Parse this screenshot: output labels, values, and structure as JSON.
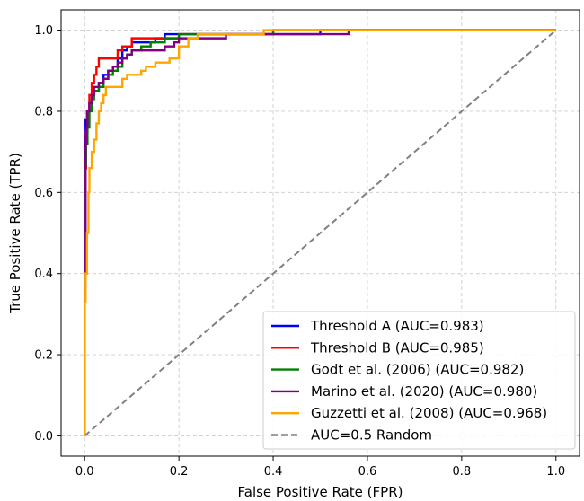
{
  "chart_data": {
    "type": "line",
    "xlabel": "False Positive Rate (FPR)",
    "ylabel": "True Positive Rate (TPR)",
    "xlim": [
      -0.05,
      1.05
    ],
    "ylim": [
      -0.05,
      1.05
    ],
    "xticks": [
      0.0,
      0.2,
      0.4,
      0.6,
      0.8,
      1.0
    ],
    "yticks": [
      0.0,
      0.2,
      0.4,
      0.6,
      0.8,
      1.0
    ],
    "xtick_labels": [
      "0.0",
      "0.2",
      "0.4",
      "0.6",
      "0.8",
      "1.0"
    ],
    "ytick_labels": [
      "0.0",
      "0.2",
      "0.4",
      "0.6",
      "0.8",
      "1.0"
    ],
    "grid": true,
    "legend_position": "lower-right",
    "series": [
      {
        "name": "Threshold A (AUC=0.983)",
        "color": "#0000ff",
        "step": true,
        "x": [
          0.0,
          0.0,
          0.002,
          0.005,
          0.01,
          0.015,
          0.02,
          0.03,
          0.04,
          0.05,
          0.06,
          0.07,
          0.08,
          0.09,
          0.1,
          0.12,
          0.15,
          0.17,
          0.2,
          0.3,
          0.5,
          1.0
        ],
        "y": [
          0.0,
          0.74,
          0.78,
          0.8,
          0.82,
          0.84,
          0.85,
          0.87,
          0.89,
          0.9,
          0.91,
          0.93,
          0.95,
          0.96,
          0.97,
          0.97,
          0.98,
          0.99,
          0.99,
          0.99,
          1.0,
          1.0
        ]
      },
      {
        "name": "Threshold B (AUC=0.985)",
        "color": "#ff0000",
        "step": true,
        "x": [
          0.0,
          0.0,
          0.003,
          0.006,
          0.01,
          0.015,
          0.02,
          0.025,
          0.03,
          0.05,
          0.07,
          0.08,
          0.1,
          0.15,
          0.2,
          0.3,
          0.4,
          1.0
        ],
        "y": [
          0.0,
          0.66,
          0.75,
          0.8,
          0.84,
          0.87,
          0.89,
          0.91,
          0.93,
          0.93,
          0.95,
          0.96,
          0.98,
          0.98,
          0.99,
          0.99,
          1.0,
          1.0
        ]
      },
      {
        "name": "Godt et al. (2006) (AUC=0.982)",
        "color": "#008000",
        "step": true,
        "x": [
          0.0,
          0.0,
          0.003,
          0.006,
          0.01,
          0.015,
          0.02,
          0.03,
          0.04,
          0.05,
          0.06,
          0.07,
          0.08,
          0.09,
          0.1,
          0.12,
          0.14,
          0.17,
          0.2,
          0.25,
          0.4,
          1.0
        ],
        "y": [
          0.0,
          0.67,
          0.72,
          0.76,
          0.8,
          0.83,
          0.85,
          0.86,
          0.88,
          0.89,
          0.9,
          0.91,
          0.93,
          0.94,
          0.95,
          0.96,
          0.97,
          0.98,
          0.99,
          0.99,
          1.0,
          1.0
        ]
      },
      {
        "name": "Marino et al. (2020) (AUC=0.980)",
        "color": "#800080",
        "step": true,
        "x": [
          0.0,
          0.0,
          0.002,
          0.004,
          0.006,
          0.01,
          0.015,
          0.02,
          0.03,
          0.04,
          0.05,
          0.06,
          0.07,
          0.08,
          0.09,
          0.1,
          0.13,
          0.17,
          0.19,
          0.2,
          0.3,
          0.45,
          0.55,
          0.56,
          1.0
        ],
        "y": [
          0.0,
          0.34,
          0.72,
          0.76,
          0.8,
          0.82,
          0.84,
          0.86,
          0.87,
          0.88,
          0.9,
          0.91,
          0.92,
          0.93,
          0.94,
          0.95,
          0.95,
          0.96,
          0.97,
          0.98,
          0.99,
          0.99,
          0.99,
          1.0,
          1.0
        ]
      },
      {
        "name": "Guzzetti et al. (2008) (AUC=0.968)",
        "color": "#ffa500",
        "step": true,
        "x": [
          0.0,
          0.0,
          0.002,
          0.005,
          0.008,
          0.01,
          0.015,
          0.02,
          0.025,
          0.03,
          0.035,
          0.04,
          0.045,
          0.05,
          0.06,
          0.08,
          0.09,
          0.1,
          0.12,
          0.13,
          0.15,
          0.18,
          0.2,
          0.22,
          0.24,
          0.3,
          0.38,
          1.0
        ],
        "y": [
          0.0,
          0.33,
          0.4,
          0.5,
          0.6,
          0.66,
          0.7,
          0.73,
          0.77,
          0.8,
          0.82,
          0.84,
          0.86,
          0.86,
          0.86,
          0.88,
          0.89,
          0.89,
          0.9,
          0.91,
          0.92,
          0.93,
          0.96,
          0.98,
          0.99,
          0.99,
          1.0,
          1.0
        ]
      }
    ],
    "reference": {
      "name": "AUC=0.5 Random",
      "color": "#808080",
      "dashed": true,
      "x": [
        0.0,
        1.0
      ],
      "y": [
        0.0,
        1.0
      ]
    }
  }
}
